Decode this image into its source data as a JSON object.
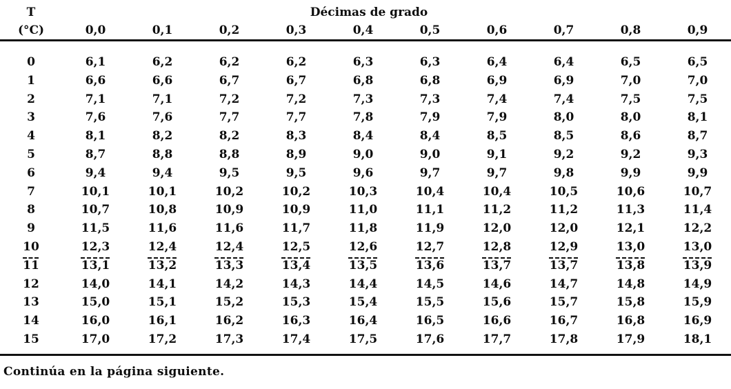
{
  "table": {
    "corner_header": {
      "line1": "T",
      "line2": "(°C)"
    },
    "span_header": "Décimas de grado",
    "col_headers": [
      "0,0",
      "0,1",
      "0,2",
      "0,3",
      "0,4",
      "0,5",
      "0,6",
      "0,7",
      "0,8",
      "0,9"
    ],
    "rows": [
      {
        "t": "0",
        "values": [
          "6,1",
          "6,2",
          "6,2",
          "6,2",
          "6,3",
          "6,3",
          "6,4",
          "6,4",
          "6,5",
          "6,5"
        ]
      },
      {
        "t": "1",
        "values": [
          "6,6",
          "6,6",
          "6,7",
          "6,7",
          "6,8",
          "6,8",
          "6,9",
          "6,9",
          "7,0",
          "7,0"
        ]
      },
      {
        "t": "2",
        "values": [
          "7,1",
          "7,1",
          "7,2",
          "7,2",
          "7,3",
          "7,3",
          "7,4",
          "7,4",
          "7,5",
          "7,5"
        ]
      },
      {
        "t": "3",
        "values": [
          "7,6",
          "7,6",
          "7,7",
          "7,7",
          "7,8",
          "7,9",
          "7,9",
          "8,0",
          "8,0",
          "8,1"
        ]
      },
      {
        "t": "4",
        "values": [
          "8,1",
          "8,2",
          "8,2",
          "8,3",
          "8,4",
          "8,4",
          "8,5",
          "8,5",
          "8,6",
          "8,7"
        ]
      },
      {
        "t": "5",
        "values": [
          "8,7",
          "8,8",
          "8,8",
          "8,9",
          "9,0",
          "9,0",
          "9,1",
          "9,2",
          "9,2",
          "9,3"
        ]
      },
      {
        "t": "6",
        "values": [
          "9,4",
          "9,4",
          "9,5",
          "9,5",
          "9,6",
          "9,7",
          "9,7",
          "9,8",
          "9,9",
          "9,9"
        ]
      },
      {
        "t": "7",
        "values": [
          "10,1",
          "10,1",
          "10,2",
          "10,2",
          "10,3",
          "10,4",
          "10,4",
          "10,5",
          "10,6",
          "10,7"
        ]
      },
      {
        "t": "8",
        "values": [
          "10,7",
          "10,8",
          "10,9",
          "10,9",
          "11,0",
          "11,1",
          "11,2",
          "11,2",
          "11,3",
          "11,4"
        ]
      },
      {
        "t": "9",
        "values": [
          "11,5",
          "11,6",
          "11,6",
          "11,7",
          "11,8",
          "11,9",
          "12,0",
          "12,0",
          "12,1",
          "12,2"
        ]
      },
      {
        "t": "10",
        "values": [
          "12,3",
          "12,4",
          "12,4",
          "12,5",
          "12,6",
          "12,7",
          "12,8",
          "12,9",
          "13,0",
          "13,0"
        ]
      },
      {
        "t": "11",
        "values": [
          "13,1",
          "13,2",
          "13,3",
          "13,4",
          "13,5",
          "13,6",
          "13,7",
          "13,7",
          "13,8",
          "13,9"
        ],
        "overline_artifact": true
      },
      {
        "t": "12",
        "values": [
          "14,0",
          "14,1",
          "14,2",
          "14,3",
          "14,4",
          "14,5",
          "14,6",
          "14,7",
          "14,8",
          "14,9"
        ]
      },
      {
        "t": "13",
        "values": [
          "15,0",
          "15,1",
          "15,2",
          "15,3",
          "15,4",
          "15,5",
          "15,6",
          "15,7",
          "15,8",
          "15,9"
        ]
      },
      {
        "t": "14",
        "values": [
          "16,0",
          "16,1",
          "16,2",
          "16,3",
          "16,4",
          "16,5",
          "16,6",
          "16,7",
          "16,8",
          "16,9"
        ]
      },
      {
        "t": "15",
        "values": [
          "17,0",
          "17,2",
          "17,3",
          "17,4",
          "17,5",
          "17,6",
          "17,7",
          "17,8",
          "17,9",
          "18,1"
        ]
      }
    ]
  },
  "footer": {
    "note": "Continúa en la página siguiente."
  },
  "colors": {
    "background": "#ffffff",
    "text": "#0d0d0d",
    "rule": "#111111"
  }
}
